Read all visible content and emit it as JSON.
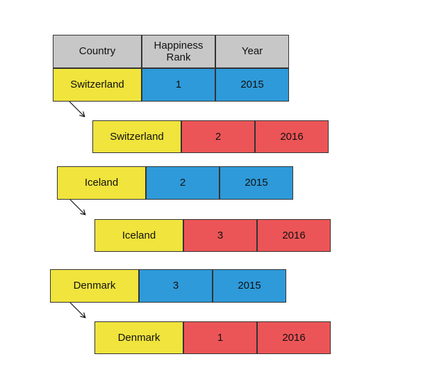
{
  "colors": {
    "header": "#c7c7c7",
    "country": "#f0e43d",
    "year_2015": "#2e9ad9",
    "year_2016": "#ec5557"
  },
  "header": {
    "country": "Country",
    "rank_line1": "Happiness",
    "rank_line2": "Rank",
    "year": "Year"
  },
  "groups": [
    {
      "row_2015": {
        "country": "Switzerland",
        "rank": "1",
        "year": "2015"
      },
      "row_2016": {
        "country": "Switzerland",
        "rank": "2",
        "year": "2016"
      }
    },
    {
      "row_2015": {
        "country": "Iceland",
        "rank": "2",
        "year": "2015"
      },
      "row_2016": {
        "country": "Iceland",
        "rank": "3",
        "year": "2016"
      }
    },
    {
      "row_2015": {
        "country": "Denmark",
        "rank": "3",
        "year": "2015"
      },
      "row_2016": {
        "country": "Denmark",
        "rank": "1",
        "year": "2016"
      }
    }
  ]
}
